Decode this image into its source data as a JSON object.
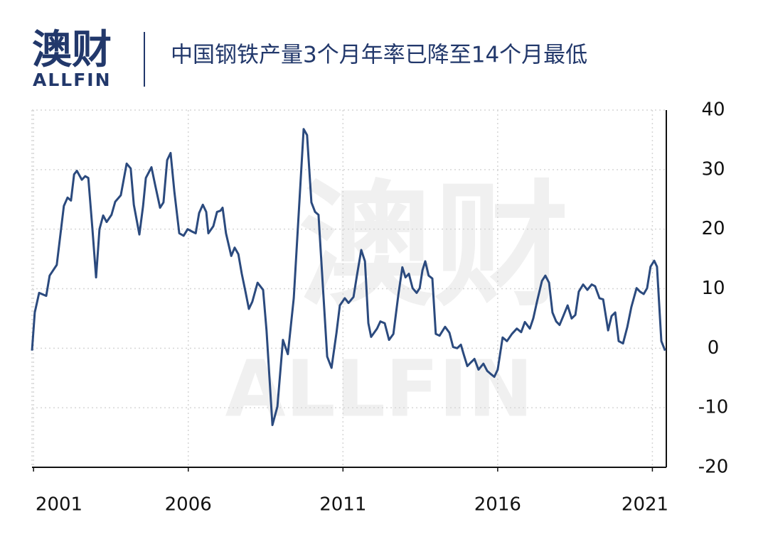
{
  "brand": {
    "name": "澳财",
    "sub": "ALLFIN"
  },
  "chart_data": {
    "type": "line",
    "title": "中国钢铁产量3个月年率已降至14个月最低",
    "x": [
      2000.95,
      2001.04,
      2001.18,
      2001.41,
      2001.52,
      2001.75,
      2001.98,
      2002.1,
      2002.21,
      2002.31,
      2002.4,
      2002.56,
      2002.67,
      2002.77,
      2002.9,
      2003.02,
      2003.13,
      2003.25,
      2003.36,
      2003.52,
      2003.64,
      2003.82,
      2004.01,
      2004.14,
      2004.24,
      2004.42,
      2004.54,
      2004.63,
      2004.81,
      2004.93,
      2005.09,
      2005.2,
      2005.32,
      2005.43,
      2005.55,
      2005.71,
      2005.85,
      2005.98,
      2006.12,
      2006.24,
      2006.35,
      2006.47,
      2006.58,
      2006.65,
      2006.81,
      2006.93,
      2007.04,
      2007.11,
      2007.22,
      2007.39,
      2007.5,
      2007.62,
      2007.73,
      2007.85,
      2007.96,
      2008.07,
      2008.24,
      2008.42,
      2008.53,
      2008.72,
      2008.88,
      2009.06,
      2009.22,
      2009.41,
      2009.57,
      2009.73,
      2009.84,
      2009.98,
      2010.1,
      2010.21,
      2010.49,
      2010.63,
      2010.79,
      2010.9,
      2011.06,
      2011.18,
      2011.34,
      2011.45,
      2011.59,
      2011.71,
      2011.82,
      2011.91,
      2012.1,
      2012.21,
      2012.35,
      2012.49,
      2012.63,
      2012.79,
      2012.92,
      2013.02,
      2013.13,
      2013.25,
      2013.38,
      2013.48,
      2013.57,
      2013.66,
      2013.77,
      2013.89,
      2014.0,
      2014.12,
      2014.3,
      2014.44,
      2014.56,
      2014.69,
      2014.81,
      2014.9,
      2015.02,
      2015.13,
      2015.25,
      2015.38,
      2015.54,
      2015.66,
      2015.77,
      2015.89,
      2016.0,
      2016.16,
      2016.3,
      2016.46,
      2016.62,
      2016.76,
      2016.88,
      2017.04,
      2017.15,
      2017.27,
      2017.43,
      2017.54,
      2017.66,
      2017.77,
      2017.89,
      2018.0,
      2018.12,
      2018.26,
      2018.39,
      2018.51,
      2018.62,
      2018.76,
      2018.9,
      2019.04,
      2019.15,
      2019.29,
      2019.41,
      2019.57,
      2019.68,
      2019.8,
      2019.91,
      2020.05,
      2020.19,
      2020.32,
      2020.49,
      2020.6,
      2020.72,
      2020.83,
      2020.94,
      2021.06,
      2021.15,
      2021.29,
      2021.41
    ],
    "series": [
      {
        "name": "3个月年率",
        "color": "#2b4a7e",
        "values": [
          -0.4,
          6,
          9.3,
          8.8,
          12.2,
          14,
          23.9,
          25.3,
          24.8,
          29.2,
          29.8,
          28.3,
          28.9,
          28.6,
          20.3,
          11.9,
          20,
          22.3,
          21.2,
          22.4,
          24.6,
          25.7,
          31,
          30.2,
          24.1,
          19.1,
          23.9,
          28.6,
          30.4,
          27.4,
          23.6,
          24.5,
          31.6,
          32.8,
          26.3,
          19.3,
          18.9,
          20,
          19.6,
          19.3,
          22.7,
          24.1,
          22.9,
          19.3,
          20.5,
          22.9,
          23.1,
          23.6,
          19.3,
          15.5,
          16.9,
          15.8,
          12.5,
          9.5,
          6.6,
          7.8,
          11,
          9.8,
          3,
          -12.9,
          -9.8,
          1.4,
          -1,
          8.4,
          22.7,
          36.8,
          35.8,
          24.5,
          22.9,
          22.4,
          -1.4,
          -3.3,
          2.6,
          7.2,
          8.4,
          7.6,
          8.6,
          12.2,
          16.5,
          14.6,
          4.2,
          1.9,
          3.3,
          4.5,
          4.2,
          1.4,
          2.4,
          9,
          13.6,
          11.9,
          12.5,
          10.1,
          9.3,
          10.1,
          13.1,
          14.6,
          12.2,
          11.7,
          2.4,
          2.1,
          3.6,
          2.6,
          0.2,
          0,
          0.6,
          -1,
          -3,
          -2.4,
          -1.8,
          -3.6,
          -2.6,
          -3.8,
          -4.3,
          -4.8,
          -3.6,
          1.8,
          1.2,
          2.4,
          3.3,
          2.7,
          4.4,
          3.3,
          5,
          7.8,
          11.3,
          12.2,
          11,
          6,
          4.5,
          3.9,
          5.4,
          7.2,
          5,
          5.6,
          9.5,
          10.7,
          9.8,
          10.7,
          10.4,
          8.4,
          8.2,
          3,
          5.4,
          6,
          1.2,
          0.8,
          3.6,
          6.9,
          10.1,
          9.5,
          9.1,
          10.1,
          13.7,
          14.7,
          13.7,
          1.2,
          -0.4
        ]
      }
    ],
    "xlim": [
      2000.95,
      2021.45
    ],
    "xticks": [
      2001,
      2006,
      2011,
      2016,
      2021
    ],
    "ylim": [
      -20,
      40
    ],
    "yticks": [
      -20,
      -10,
      0,
      10,
      20,
      30,
      40
    ],
    "grid": true
  }
}
